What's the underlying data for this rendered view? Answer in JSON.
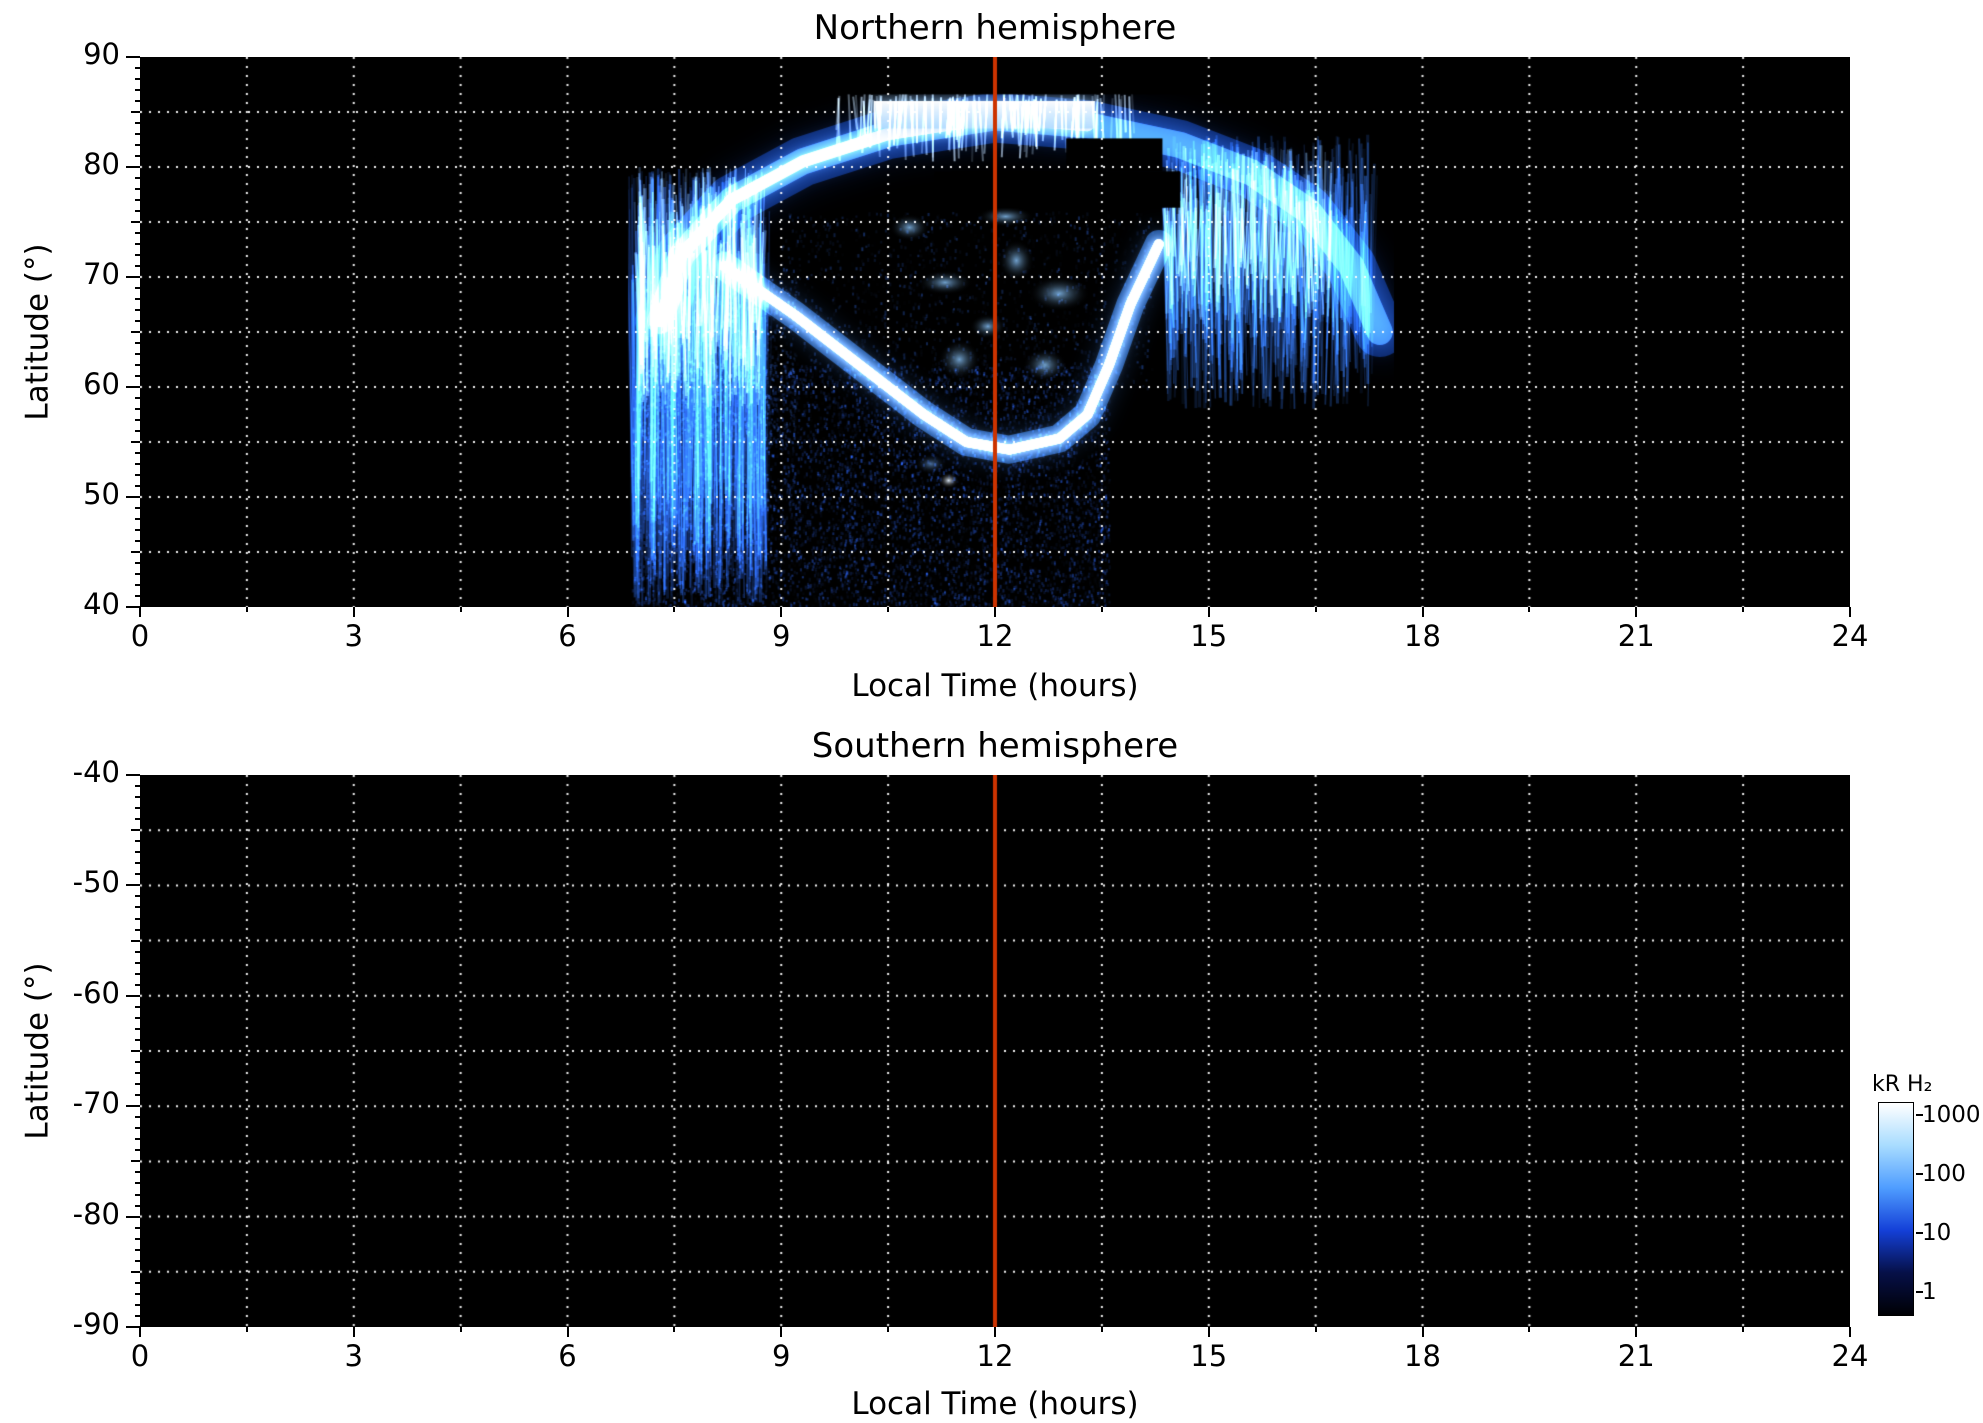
{
  "figure": {
    "background": "#ffffff"
  },
  "chart_data": {
    "type": "heatmap",
    "shared": {
      "xlabel": "Local Time (hours)",
      "ylabel": "Latitude (°)",
      "xlim": [
        0,
        24
      ],
      "xticks": [
        0,
        3,
        6,
        9,
        12,
        15,
        18,
        21,
        24
      ],
      "grid": {
        "x_step": 1.5,
        "y_step": 5,
        "style": "dotted",
        "color": "#ffffff"
      },
      "noon_line": {
        "x": 12,
        "color": "#cc3300",
        "width": 4
      },
      "plot_background": "#000000"
    },
    "panels": [
      {
        "id": "north",
        "title": "Northern hemisphere",
        "ylim": [
          40,
          90
        ],
        "yticks": [
          90,
          80,
          70,
          60,
          50,
          40
        ],
        "has_aurora": true
      },
      {
        "id": "south",
        "title": "Southern hemisphere",
        "ylim": [
          -90,
          -40
        ],
        "yticks": [
          -40,
          -50,
          -60,
          -70,
          -80,
          -90
        ],
        "has_aurora": false
      }
    ],
    "colorbar": {
      "label": "kR H₂",
      "scale": "log",
      "ticks": [
        "1000",
        "100",
        "10",
        "1"
      ],
      "gradient": [
        "#ffffff",
        "#a8dcff",
        "#4f9dff",
        "#1440d8",
        "#061048",
        "#000004"
      ]
    },
    "aurora_features": {
      "units": "kR",
      "crown_arc": {
        "points": [
          [
            7.3,
            66
          ],
          [
            7.6,
            72
          ],
          [
            8.3,
            77
          ],
          [
            9.3,
            80.5
          ],
          [
            10.5,
            83
          ],
          [
            12,
            84.5
          ],
          [
            13.3,
            83.8
          ],
          [
            14.6,
            82
          ],
          [
            15.6,
            79.5
          ],
          [
            16.4,
            76
          ],
          [
            17,
            71
          ],
          [
            17.4,
            65
          ]
        ],
        "width_deg": 3.5,
        "peak_kR": 400
      },
      "noon_band": {
        "x_range": [
          10.3,
          13.4
        ],
        "lat_range": [
          83.5,
          86
        ],
        "peak_kR": 1000
      },
      "main_swoosh": {
        "points": [
          [
            8.2,
            71
          ],
          [
            9.2,
            66.5
          ],
          [
            10.2,
            61.5
          ],
          [
            11,
            57.5
          ],
          [
            11.6,
            55
          ],
          [
            12.2,
            54.3
          ],
          [
            12.9,
            55.3
          ],
          [
            13.3,
            57.5
          ],
          [
            13.6,
            62
          ],
          [
            13.9,
            67.5
          ],
          [
            14.3,
            73
          ]
        ],
        "width_deg": 1.5,
        "peak_kR": 900
      },
      "dawn_fan": {
        "x_range": [
          6.9,
          8.8
        ],
        "lat_range": [
          40,
          80
        ],
        "peak_kR": 80
      },
      "dusk_fan": {
        "x_range": [
          14.4,
          17.3
        ],
        "lat_range": [
          58,
          83
        ],
        "peak_kR": 120
      },
      "diffuse_haze": {
        "x_range": [
          6.9,
          13.6
        ],
        "lat_range": [
          40,
          62
        ],
        "peak_kR": 8
      },
      "patches": [
        [
          10.8,
          74.5
        ],
        [
          11.3,
          69.5
        ],
        [
          11.9,
          65.5
        ],
        [
          12.3,
          71.5
        ],
        [
          12.15,
          75.5
        ],
        [
          12.7,
          62
        ],
        [
          11.5,
          62.5
        ],
        [
          12.9,
          68.5
        ]
      ],
      "bright_spot": {
        "x": 11.35,
        "lat": 51.5
      },
      "dark_band": {
        "x_range": [
          11.15,
          14.6
        ],
        "lat_range": [
          76.3,
          79.6
        ]
      },
      "dark_notch": {
        "x_range": [
          13.0,
          14.35
        ],
        "lat_range": [
          79.6,
          82.6
        ]
      }
    }
  }
}
